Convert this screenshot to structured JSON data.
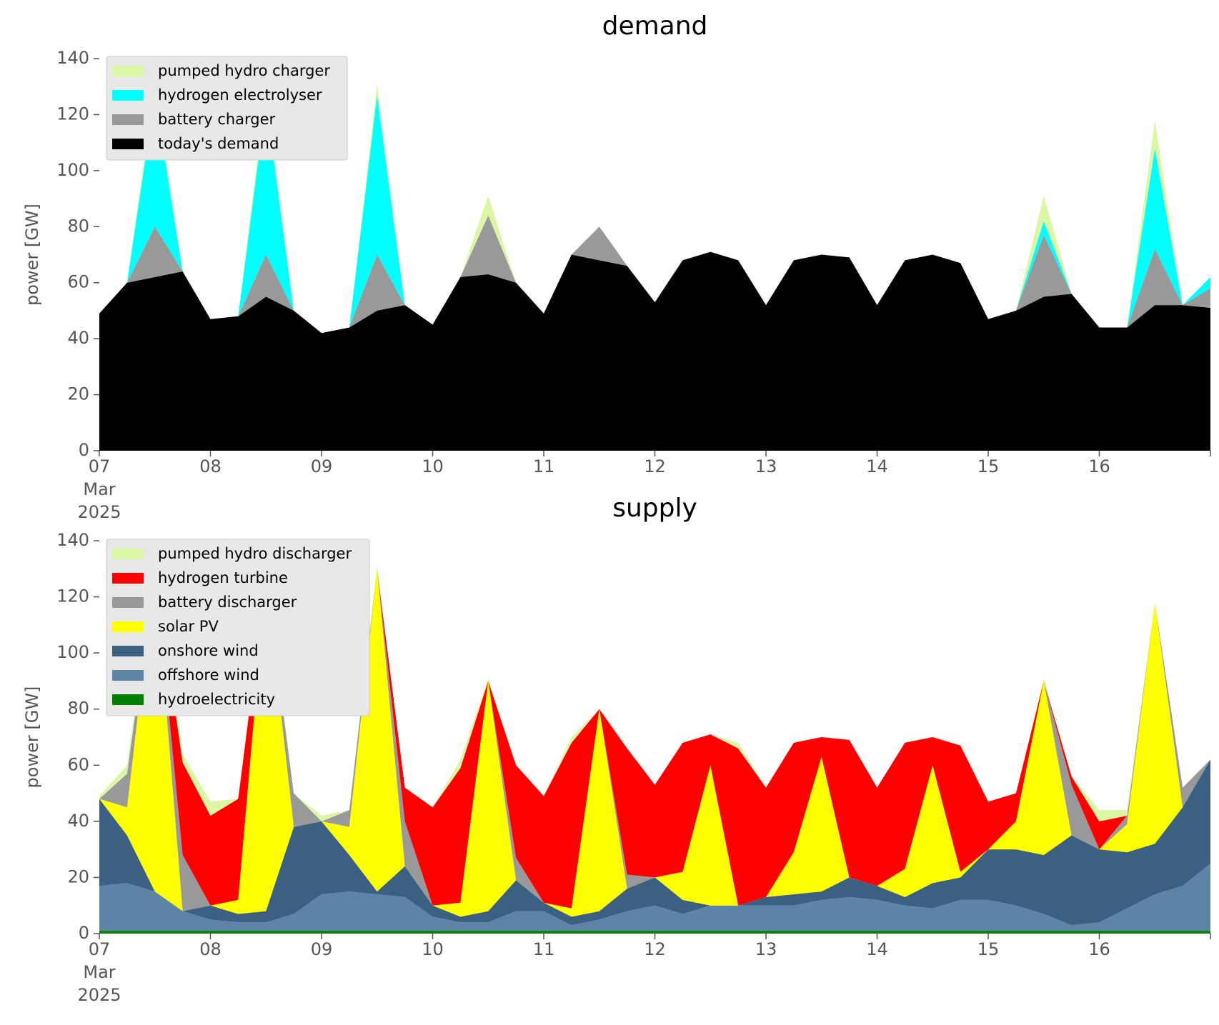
{
  "chart_data": [
    {
      "type": "area",
      "stacked": true,
      "title": "demand",
      "ylabel": "power [GW]",
      "legend": "upper left",
      "categories": [
        "07 Mar 2025",
        null,
        null,
        null,
        "08",
        null,
        null,
        null,
        "09",
        null,
        null,
        null,
        "10",
        null,
        null,
        null,
        "11",
        null,
        null,
        null,
        "12",
        null,
        null,
        null,
        "13",
        null,
        null,
        null,
        "14",
        null,
        null,
        null,
        "15",
        null,
        null,
        null,
        "16",
        null,
        null,
        null,
        null
      ],
      "ylim": [
        0,
        140
      ],
      "yticks": [
        0,
        20,
        40,
        60,
        80,
        100,
        120,
        140
      ],
      "series": [
        {
          "name": "pumped hydro charger",
          "color": "#dcf7a4",
          "values": [
            0,
            0,
            5,
            0,
            0,
            0,
            5,
            0,
            0,
            0,
            4,
            0,
            0,
            0,
            7,
            0,
            0,
            0,
            0,
            0,
            0,
            0,
            0,
            0,
            0,
            0,
            0,
            0,
            0,
            0,
            0,
            0,
            0,
            0,
            9,
            0,
            0,
            0,
            10,
            0,
            0
          ]
        },
        {
          "name": "hydrogen electrolyser",
          "color": "#00ffff",
          "values": [
            0,
            0,
            47,
            0,
            0,
            0,
            55,
            0,
            0,
            0,
            57,
            0,
            0,
            0,
            0,
            0,
            0,
            0,
            0,
            0,
            0,
            0,
            0,
            0,
            0,
            0,
            0,
            0,
            0,
            0,
            0,
            0,
            0,
            0,
            5,
            0,
            0,
            0,
            36,
            0,
            4
          ]
        },
        {
          "name": "battery charger",
          "color": "#999999",
          "values": [
            0,
            0,
            18,
            0,
            0,
            0,
            15,
            0,
            0,
            0,
            20,
            0,
            0,
            0,
            21,
            0,
            0,
            0,
            12,
            0,
            0,
            0,
            0,
            0,
            0,
            0,
            0,
            0,
            0,
            0,
            0,
            0,
            0,
            0,
            22,
            0,
            0,
            0,
            20,
            0,
            7
          ]
        },
        {
          "name": "today's demand",
          "color": "#000000",
          "values": [
            49,
            60,
            62,
            64,
            47,
            48,
            55,
            50,
            42,
            44,
            50,
            52,
            45,
            62,
            63,
            60,
            49,
            70,
            68,
            66,
            53,
            68,
            71,
            68,
            52,
            68,
            70,
            69,
            52,
            68,
            70,
            67,
            47,
            50,
            55,
            56,
            44,
            44,
            52,
            52,
            51
          ]
        }
      ]
    },
    {
      "type": "area",
      "stacked": true,
      "title": "supply",
      "ylabel": "power [GW]",
      "legend": "upper left",
      "categories": [
        "07 Mar 2025",
        null,
        null,
        null,
        "08",
        null,
        null,
        null,
        "09",
        null,
        null,
        null,
        "10",
        null,
        null,
        null,
        "11",
        null,
        null,
        null,
        "12",
        null,
        null,
        null,
        "13",
        null,
        null,
        null,
        "14",
        null,
        null,
        null,
        "15",
        null,
        null,
        null,
        "16",
        null,
        null,
        null,
        null
      ],
      "ylim": [
        0,
        140
      ],
      "yticks": [
        0,
        20,
        40,
        60,
        80,
        100,
        120,
        140
      ],
      "series": [
        {
          "name": "pumped hydro discharger",
          "color": "#dcf7a4",
          "values": [
            1,
            3,
            2,
            3,
            5,
            0,
            4,
            0,
            2,
            0,
            1,
            0,
            0,
            3,
            1,
            0,
            0,
            2,
            0,
            0,
            0,
            0,
            0,
            2,
            0,
            0,
            0,
            0,
            0,
            0,
            0,
            0,
            0,
            0,
            1,
            0,
            4,
            2,
            0,
            0,
            0
          ]
        },
        {
          "name": "hydrogen turbine",
          "color": "#ff0000",
          "values": [
            0,
            0,
            0,
            33,
            32,
            36,
            0,
            0,
            0,
            0,
            0,
            12,
            35,
            48,
            0,
            33,
            38,
            59,
            0,
            45,
            33,
            46,
            11,
            56,
            39,
            39,
            7,
            49,
            35,
            45,
            10,
            45,
            17,
            10,
            0,
            3,
            10,
            0,
            0,
            0,
            0
          ]
        },
        {
          "name": "battery discharger",
          "color": "#999999",
          "values": [
            0,
            12,
            0,
            20,
            0,
            0,
            0,
            12,
            0,
            6,
            0,
            16,
            0,
            0,
            0,
            8,
            0,
            0,
            0,
            5,
            0,
            0,
            0,
            0,
            0,
            0,
            0,
            0,
            0,
            0,
            0,
            0,
            0,
            0,
            0,
            18,
            0,
            3,
            0,
            7,
            0
          ]
        },
        {
          "name": "solar PV",
          "color": "#ffff00",
          "values": [
            0,
            10,
            115,
            0,
            0,
            5,
            118,
            0,
            0,
            10,
            115,
            0,
            0,
            5,
            82,
            0,
            0,
            3,
            72,
            0,
            0,
            10,
            50,
            0,
            0,
            15,
            48,
            0,
            0,
            10,
            42,
            2,
            0,
            10,
            62,
            0,
            0,
            10,
            86,
            0,
            0
          ]
        },
        {
          "name": "onshore wind",
          "color": "#3b6082",
          "values": [
            31,
            17,
            0,
            0,
            5,
            3,
            4,
            31,
            26,
            13,
            1,
            11,
            4,
            2,
            4,
            11,
            3,
            3,
            3,
            8,
            10,
            5,
            0,
            0,
            3,
            4,
            3,
            7,
            5,
            3,
            9,
            8,
            18,
            20,
            21,
            32,
            26,
            20,
            18,
            28,
            37
          ]
        },
        {
          "name": "offshore wind",
          "color": "#5d83a7",
          "values": [
            16,
            17,
            14,
            7,
            4,
            3,
            3,
            6,
            13,
            14,
            13,
            12,
            5,
            3,
            3,
            7,
            7,
            2,
            4,
            7,
            9,
            6,
            9,
            9,
            9,
            9,
            11,
            12,
            11,
            9,
            8,
            11,
            11,
            9,
            6,
            2,
            3,
            8,
            13,
            16,
            24
          ]
        },
        {
          "name": "hydroelectricity",
          "color": "#008000",
          "values": [
            1,
            1,
            1,
            1,
            1,
            1,
            1,
            1,
            1,
            1,
            1,
            1,
            1,
            1,
            1,
            1,
            1,
            1,
            1,
            1,
            1,
            1,
            1,
            1,
            1,
            1,
            1,
            1,
            1,
            1,
            1,
            1,
            1,
            1,
            1,
            1,
            1,
            1,
            1,
            1,
            1
          ]
        }
      ]
    }
  ]
}
